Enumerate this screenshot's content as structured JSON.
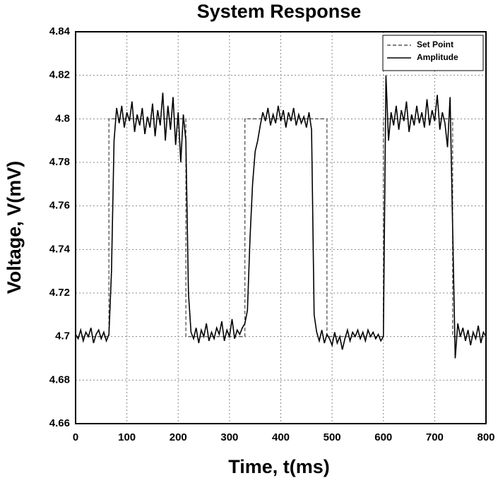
{
  "chart_data": {
    "type": "line",
    "title": "System Response",
    "x_label": "Time, t(ms)",
    "y_label": "Voltage, V(mV)",
    "xlim": [
      0,
      800
    ],
    "xticks": [
      0,
      100,
      200,
      300,
      400,
      500,
      600,
      700,
      800
    ],
    "ylim": [
      4.66,
      4.84
    ],
    "yticks": [
      4.66,
      4.68,
      4.7,
      4.72,
      4.74,
      4.76,
      4.78,
      4.8,
      4.82,
      4.84
    ],
    "grid": true,
    "legend": "upper right",
    "series": [
      {
        "name": "Set Point",
        "color": "#555555",
        "dashed": true,
        "x": [
          0,
          65,
          65,
          215,
          215,
          330,
          330,
          490,
          490,
          600,
          600,
          735,
          735,
          800
        ],
        "values": [
          4.7,
          4.7,
          4.8,
          4.8,
          4.7,
          4.7,
          4.8,
          4.8,
          4.7,
          4.7,
          4.8,
          4.8,
          4.7,
          4.7
        ]
      },
      {
        "name": "Amplitude",
        "color": "#000000",
        "dashed": false,
        "x": [
          0,
          5,
          10,
          15,
          20,
          25,
          30,
          35,
          40,
          45,
          50,
          55,
          60,
          65,
          70,
          75,
          80,
          85,
          90,
          95,
          100,
          105,
          110,
          115,
          120,
          125,
          130,
          135,
          140,
          145,
          150,
          155,
          160,
          165,
          170,
          175,
          180,
          185,
          190,
          195,
          200,
          205,
          210,
          215,
          220,
          225,
          230,
          235,
          240,
          245,
          250,
          255,
          260,
          265,
          270,
          275,
          280,
          285,
          290,
          295,
          300,
          305,
          310,
          315,
          320,
          325,
          330,
          335,
          340,
          345,
          350,
          355,
          360,
          365,
          370,
          375,
          380,
          385,
          390,
          395,
          400,
          405,
          410,
          415,
          420,
          425,
          430,
          435,
          440,
          445,
          450,
          455,
          460,
          465,
          470,
          475,
          480,
          485,
          490,
          495,
          500,
          505,
          510,
          515,
          520,
          525,
          530,
          535,
          540,
          545,
          550,
          555,
          560,
          565,
          570,
          575,
          580,
          585,
          590,
          595,
          600,
          605,
          610,
          615,
          620,
          625,
          630,
          635,
          640,
          645,
          650,
          655,
          660,
          665,
          670,
          675,
          680,
          685,
          690,
          695,
          700,
          705,
          710,
          715,
          720,
          725,
          730,
          735,
          740,
          745,
          750,
          755,
          760,
          765,
          770,
          775,
          780,
          785,
          790,
          795,
          800
        ],
        "values": [
          4.701,
          4.699,
          4.703,
          4.698,
          4.702,
          4.7,
          4.704,
          4.697,
          4.701,
          4.703,
          4.699,
          4.702,
          4.698,
          4.701,
          4.73,
          4.79,
          4.805,
          4.798,
          4.806,
          4.796,
          4.803,
          4.799,
          4.808,
          4.794,
          4.802,
          4.797,
          4.805,
          4.793,
          4.801,
          4.796,
          4.807,
          4.792,
          4.804,
          4.797,
          4.812,
          4.79,
          4.806,
          4.795,
          4.81,
          4.788,
          4.803,
          4.78,
          4.802,
          4.79,
          4.72,
          4.702,
          4.699,
          4.704,
          4.697,
          4.703,
          4.7,
          4.706,
          4.698,
          4.702,
          4.699,
          4.704,
          4.701,
          4.707,
          4.698,
          4.703,
          4.7,
          4.708,
          4.699,
          4.703,
          4.701,
          4.704,
          4.706,
          4.712,
          4.745,
          4.77,
          4.785,
          4.79,
          4.797,
          4.803,
          4.799,
          4.805,
          4.797,
          4.802,
          4.798,
          4.806,
          4.799,
          4.804,
          4.796,
          4.803,
          4.799,
          4.805,
          4.797,
          4.802,
          4.798,
          4.801,
          4.796,
          4.803,
          4.795,
          4.71,
          4.702,
          4.698,
          4.703,
          4.697,
          4.701,
          4.699,
          4.696,
          4.702,
          4.697,
          4.7,
          4.694,
          4.699,
          4.703,
          4.698,
          4.702,
          4.7,
          4.703,
          4.699,
          4.702,
          4.698,
          4.703,
          4.7,
          4.702,
          4.699,
          4.701,
          4.698,
          4.7,
          4.82,
          4.79,
          4.803,
          4.797,
          4.806,
          4.795,
          4.804,
          4.799,
          4.808,
          4.794,
          4.802,
          4.797,
          4.806,
          4.798,
          4.803,
          4.796,
          4.809,
          4.797,
          4.804,
          4.799,
          4.811,
          4.795,
          4.803,
          4.798,
          4.787,
          4.81,
          4.75,
          4.69,
          4.706,
          4.7,
          4.704,
          4.698,
          4.703,
          4.696,
          4.702,
          4.699,
          4.705,
          4.697,
          4.702,
          4.7
        ]
      }
    ]
  }
}
